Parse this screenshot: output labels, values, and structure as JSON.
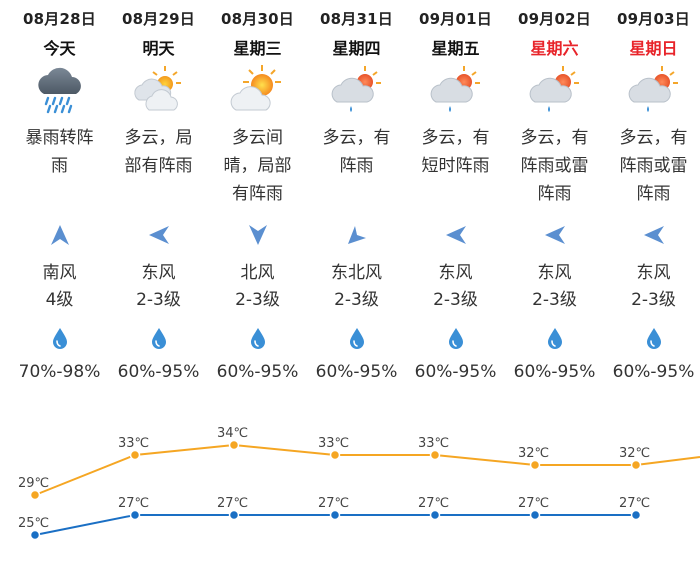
{
  "days": [
    {
      "date": "08月28日",
      "dow": "今天",
      "weekend": false,
      "icon": "heavy-rain-icon",
      "desc": [
        "暴雨转阵",
        "雨"
      ],
      "wind_arrow": "north-arrow-icon",
      "wind_dir": "南风",
      "wind_level": "4级",
      "humidity": "70%-98%"
    },
    {
      "date": "08月29日",
      "dow": "明天",
      "weekend": false,
      "icon": "sun-cloud-rain-icon",
      "desc": [
        "多云，局",
        "部有阵雨"
      ],
      "wind_arrow": "west-arrow-icon",
      "wind_dir": "东风",
      "wind_level": "2-3级",
      "humidity": "60%-95%"
    },
    {
      "date": "08月30日",
      "dow": "星期三",
      "weekend": false,
      "icon": "partly-sunny-icon",
      "desc": [
        "多云间",
        "晴，局部",
        "有阵雨"
      ],
      "wind_arrow": "south-arrow-icon",
      "wind_dir": "北风",
      "wind_level": "2-3级",
      "humidity": "60%-95%"
    },
    {
      "date": "08月31日",
      "dow": "星期四",
      "weekend": false,
      "icon": "sun-cloud-shower-icon",
      "desc": [
        "多云，有",
        "阵雨"
      ],
      "wind_arrow": "southwest-arrow-icon",
      "wind_dir": "东北风",
      "wind_level": "2-3级",
      "humidity": "60%-95%"
    },
    {
      "date": "09月01日",
      "dow": "星期五",
      "weekend": false,
      "icon": "sun-cloud-shower-icon",
      "desc": [
        "多云，有",
        "短时阵雨"
      ],
      "wind_arrow": "west-arrow-icon",
      "wind_dir": "东风",
      "wind_level": "2-3级",
      "humidity": "60%-95%"
    },
    {
      "date": "09月02日",
      "dow": "星期六",
      "weekend": true,
      "icon": "sun-cloud-shower-icon",
      "desc": [
        "多云，有",
        "阵雨或雷",
        "阵雨"
      ],
      "wind_arrow": "west-arrow-icon",
      "wind_dir": "东风",
      "wind_level": "2-3级",
      "humidity": "60%-95%"
    },
    {
      "date": "09月03日",
      "dow": "星期日",
      "weekend": true,
      "icon": "sun-cloud-shower-icon",
      "desc": [
        "多云，有",
        "阵雨或雷",
        "阵雨"
      ],
      "wind_arrow": "west-arrow-icon",
      "wind_dir": "东风",
      "wind_level": "2-3级",
      "humidity": "60%-95%"
    }
  ],
  "temperature": {
    "unit": "℃",
    "high": [
      29,
      33,
      34,
      33,
      33,
      32,
      32
    ],
    "low": [
      25,
      27,
      27,
      27,
      27,
      27,
      27
    ],
    "high_color": "#f5a623",
    "low_color": "#1a6fc4"
  },
  "colors": {
    "weekend": "#e8242a",
    "icon_blue": "#3a8fd6",
    "arrow_blue": "#5b8fd0"
  }
}
